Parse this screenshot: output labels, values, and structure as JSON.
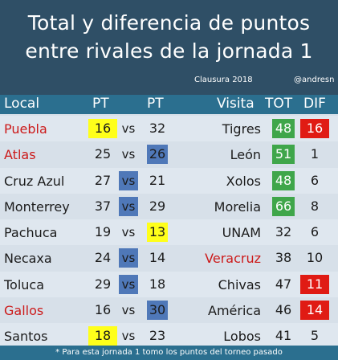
{
  "title_line1": "Total y diferencia de puntos",
  "title_line2": "entre rivales de la jornada 1",
  "subtitle_left": "Clausura 2018",
  "subtitle_right": "@andresn",
  "headers": {
    "local": "Local",
    "pt1": "PT",
    "pt2": "PT",
    "visita": "Visita",
    "tot": "TOT",
    "dif": "DIF"
  },
  "rows": [
    {
      "local": "Puebla",
      "pt1": "16",
      "vs": "vs",
      "pt2": "32",
      "visita": "Tigres",
      "tot": "48",
      "dif": "16"
    },
    {
      "local": "Atlas",
      "pt1": "25",
      "vs": "vs",
      "pt2": "26",
      "visita": "León",
      "tot": "51",
      "dif": "1"
    },
    {
      "local": "Cruz Azul",
      "pt1": "27",
      "vs": "vs",
      "pt2": "21",
      "visita": "Xolos",
      "tot": "48",
      "dif": "6"
    },
    {
      "local": "Monterrey",
      "pt1": "37",
      "vs": "vs",
      "pt2": "29",
      "visita": "Morelia",
      "tot": "66",
      "dif": "8"
    },
    {
      "local": "Pachuca",
      "pt1": "19",
      "vs": "vs",
      "pt2": "13",
      "visita": "UNAM",
      "tot": "32",
      "dif": "6"
    },
    {
      "local": "Necaxa",
      "pt1": "24",
      "vs": "vs",
      "pt2": "14",
      "visita": "Veracruz",
      "tot": "38",
      "dif": "10"
    },
    {
      "local": "Toluca",
      "pt1": "29",
      "vs": "vs",
      "pt2": "18",
      "visita": "Chivas",
      "tot": "47",
      "dif": "11"
    },
    {
      "local": "Gallos",
      "pt1": "16",
      "vs": "vs",
      "pt2": "30",
      "visita": "América",
      "tot": "46",
      "dif": "14"
    },
    {
      "local": "Santos",
      "pt1": "18",
      "vs": "vs",
      "pt2": "23",
      "visita": "Lobos",
      "tot": "41",
      "dif": "5"
    }
  ],
  "footer": "* Para esta jornada 1 tomo los puntos del torneo pasado",
  "colors": {
    "header_bg": "#2f4f66",
    "header_bar": "#2b6f8f",
    "yellow": "#ffff1a",
    "blue": "#4f78b8",
    "green": "#3fa64a",
    "red": "#e01b14",
    "red_text": "#cc1a1a"
  }
}
